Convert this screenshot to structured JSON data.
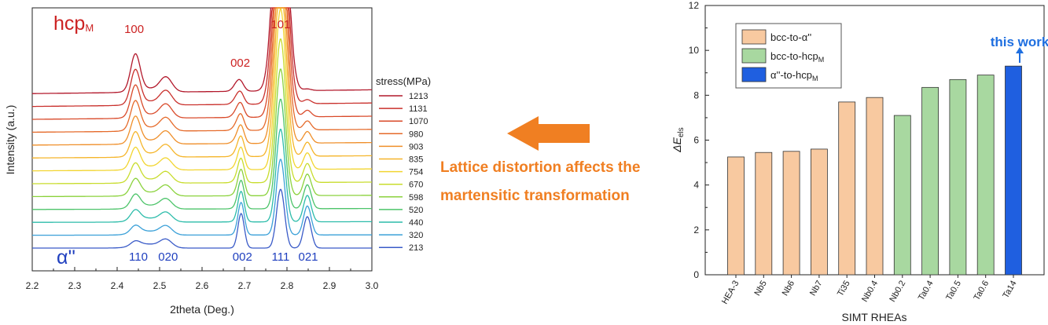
{
  "colors": {
    "hcp": "#cc2222",
    "alpha": "#1f3fbf",
    "orange_bar": "#f8c9a0",
    "green_bar": "#a8d8a0",
    "blue_bar": "#1f5fe0",
    "accent_orange": "#f07f22",
    "this_work": "#1f6fe0"
  },
  "annotation": {
    "line1": "Lattice distortion affects the",
    "line2": "martensitic transformation"
  },
  "chart_data": [
    {
      "type": "line",
      "xlabel": "2theta (Deg.)",
      "ylabel": "Intensity (a.u.)",
      "xlim": [
        2.2,
        3.0
      ],
      "xticks": [
        "2.2",
        "2.3",
        "2.4",
        "2.5",
        "2.6",
        "2.7",
        "2.8",
        "2.9",
        "3.0"
      ],
      "legend_title": "stress(MPa)",
      "legend_position": "right",
      "series": [
        {
          "name": "1213",
          "color": "#b2182b"
        },
        {
          "name": "1131",
          "color": "#c9302c"
        },
        {
          "name": "1070",
          "color": "#d94a2a"
        },
        {
          "name": "980",
          "color": "#e56a2a"
        },
        {
          "name": "903",
          "color": "#ef8f2a"
        },
        {
          "name": "835",
          "color": "#f5b52a"
        },
        {
          "name": "754",
          "color": "#f2d530"
        },
        {
          "name": "670",
          "color": "#c8dc2c"
        },
        {
          "name": "598",
          "color": "#8bd23c"
        },
        {
          "name": "520",
          "color": "#4dc46a"
        },
        {
          "name": "440",
          "color": "#2cbcaa"
        },
        {
          "name": "320",
          "color": "#3aa0d8"
        },
        {
          "name": "213",
          "color": "#3a5bc8"
        }
      ],
      "top_phase": {
        "label": "hcp",
        "sub": "M"
      },
      "bottom_phase": {
        "label": "α''"
      },
      "top_peaks": [
        {
          "label": "100",
          "x": 2.44
        },
        {
          "label": "002",
          "x": 2.69
        },
        {
          "label": "101",
          "x": 2.785
        }
      ],
      "bottom_peaks": [
        {
          "label": "110",
          "x": 2.45
        },
        {
          "label": "020",
          "x": 2.52
        },
        {
          "label": "002",
          "x": 2.695
        },
        {
          "label": "111",
          "x": 2.785
        },
        {
          "label": "021",
          "x": 2.85
        }
      ]
    },
    {
      "type": "bar",
      "xlabel": "SIMT RHEAs",
      "ylabel_main": "ΔE",
      "ylabel_sub": "els",
      "ylim": [
        0,
        12
      ],
      "yticks": [
        "0",
        "2",
        "4",
        "6",
        "8",
        "10",
        "12"
      ],
      "categories": [
        "HEA-3",
        "Nb5",
        "Nb6",
        "Nb7",
        "Ti35",
        "Nb0.4",
        "Nb0.2",
        "Ta0.4",
        "Ta0.5",
        "Ta0.6",
        "Ta14"
      ],
      "values": [
        5.25,
        5.45,
        5.5,
        5.6,
        7.7,
        7.9,
        7.1,
        8.35,
        8.7,
        8.9,
        9.3
      ],
      "groups": [
        "orange",
        "orange",
        "orange",
        "orange",
        "orange",
        "orange",
        "green",
        "green",
        "green",
        "green",
        "blue"
      ],
      "legend": [
        {
          "key": "orange",
          "text": "bcc-to-α''",
          "sub": ""
        },
        {
          "key": "green",
          "text": "bcc-to-hcp",
          "sub": "M"
        },
        {
          "key": "blue",
          "text": "α''-to-hcp",
          "sub": "M"
        }
      ],
      "legend_position": "top-left",
      "highlight_label": "this work"
    }
  ]
}
